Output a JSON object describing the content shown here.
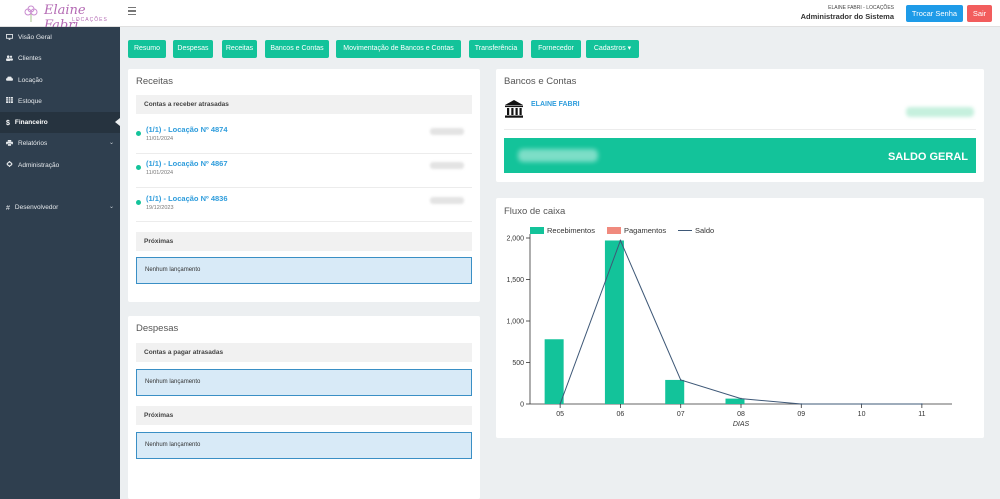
{
  "app": {
    "logo_text": "Elaine Fabri",
    "logo_sub": "LOCAÇÕES"
  },
  "header": {
    "user_small": "ELAINE FABRI - LOCAÇÕES",
    "user_role": "Administrador do Sistema",
    "change_password": "Trocar Senha",
    "logout": "Sair"
  },
  "sidebar": {
    "items": [
      {
        "label": "Visão Geral",
        "icon": "monitor-icon"
      },
      {
        "label": "Clientes",
        "icon": "users-icon"
      },
      {
        "label": "Locação",
        "icon": "car-icon"
      },
      {
        "label": "Estoque",
        "icon": "grid-icon"
      },
      {
        "label": "Financeiro",
        "icon": "dollar-icon"
      },
      {
        "label": "Relatórios",
        "icon": "printer-icon"
      },
      {
        "label": "Administração",
        "icon": "gear-icon"
      },
      {
        "label": "Desenvolvedor",
        "icon": "hash-icon"
      }
    ]
  },
  "tabs": [
    "Resumo",
    "Despesas",
    "Receitas",
    "Bancos e Contas",
    "Movimentação de Bancos e Contas",
    "Transferência",
    "Fornecedor",
    "Cadastros ▾"
  ],
  "receitas": {
    "title": "Receitas",
    "overdue_head": "Contas a receber atrasadas",
    "entries": [
      {
        "label": "(1/1) - Locação Nº 4874",
        "date": "11/01/2024"
      },
      {
        "label": "(1/1) - Locação Nº 4867",
        "date": "11/01/2024"
      },
      {
        "label": "(1/1) - Locação Nº 4836",
        "date": "19/12/2023"
      }
    ],
    "next_head": "Próximas",
    "next_empty": "Nenhum lançamento"
  },
  "despesas": {
    "title": "Despesas",
    "overdue_head": "Contas a pagar atrasadas",
    "overdue_empty": "Nenhum lançamento",
    "next_head": "Próximas",
    "next_empty": "Nenhum lançamento"
  },
  "bancos": {
    "title": "Bancos e Contas",
    "bank_name": "ELAINE FABRI",
    "saldo_label": "SALDO GERAL",
    "icon": "bank-icon"
  },
  "fluxo": {
    "title": "Fluxo de caixa"
  },
  "colors": {
    "accent": "#13c39a",
    "sidebar": "#2f3f4f",
    "link": "#2f9ddc",
    "pagamentos": "#f08a7e"
  },
  "chart_data": {
    "type": "bar",
    "categories": [
      "05",
      "06",
      "07",
      "08",
      "09",
      "10",
      "11"
    ],
    "series": [
      {
        "name": "Recebimentos",
        "type": "bar",
        "values": [
          780,
          1970,
          290,
          65,
          0,
          0,
          0
        ]
      },
      {
        "name": "Pagamentos",
        "type": "bar",
        "values": [
          0,
          0,
          0,
          0,
          0,
          0,
          0
        ]
      },
      {
        "name": "Saldo",
        "type": "line",
        "values": [
          0,
          1970,
          290,
          65,
          0,
          0,
          0
        ]
      }
    ],
    "xlabel": "DIAS",
    "ylabel": "",
    "ylim": [
      0,
      2000
    ],
    "yticks": [
      0,
      500,
      1000,
      1500,
      2000
    ],
    "ytick_labels": [
      "0",
      "500",
      "1,000",
      "1,500",
      "2,000"
    ],
    "legend": "top-left",
    "grid": false
  }
}
